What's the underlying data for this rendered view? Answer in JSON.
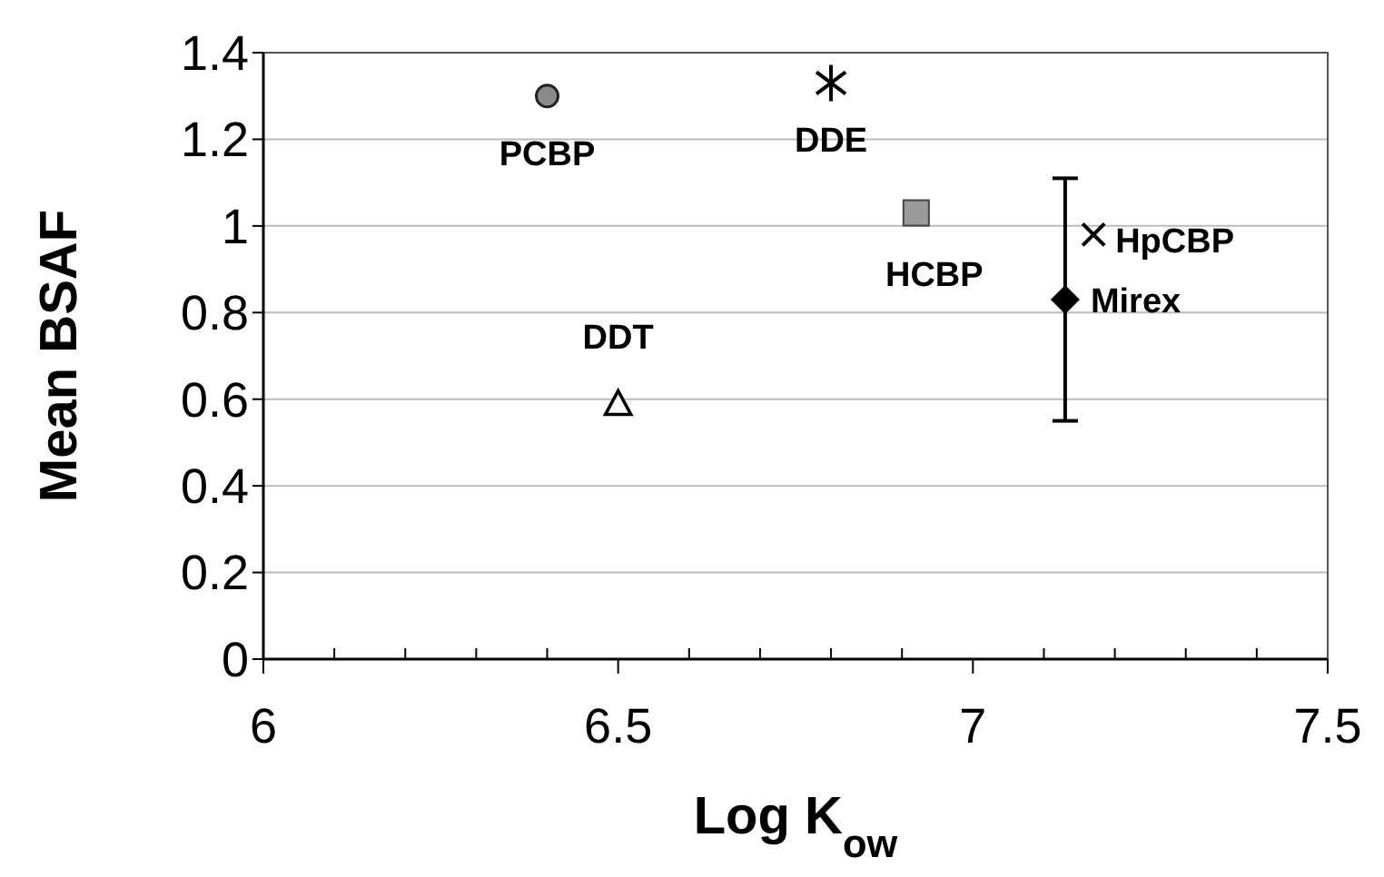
{
  "chart_data": {
    "type": "scatter",
    "xlabel": "Log K$_{ow}$",
    "ylabel": "Mean BSAF",
    "xlim": [
      6,
      7.5
    ],
    "ylim": [
      0,
      1.4
    ],
    "xticks": [
      6,
      {
        "value": 6.1,
        "label": null
      },
      {
        "value": 6.2,
        "label": null
      },
      {
        "value": 6.3,
        "label": null
      },
      {
        "value": 6.4,
        "label": null
      },
      6.5,
      {
        "value": 6.6,
        "label": null
      },
      {
        "value": 6.7,
        "label": null
      },
      {
        "value": 6.8,
        "label": null
      },
      {
        "value": 6.9,
        "label": null
      },
      7,
      {
        "value": 7.1,
        "label": null
      },
      {
        "value": 7.2,
        "label": null
      },
      {
        "value": 7.3,
        "label": null
      },
      {
        "value": 7.4,
        "label": null
      },
      7.5
    ],
    "yticks": [
      0,
      0.2,
      0.4,
      0.6,
      0.8,
      1,
      1.2,
      1.4
    ],
    "grid": "y",
    "series": [
      {
        "name": "PCBP",
        "color": "#8a8a8a",
        "marker": "circle",
        "x": [
          6.4
        ],
        "values": [
          1.3
        ]
      },
      {
        "name": "DDE",
        "color": "#000000",
        "x": [
          6.8
        ],
        "values": [
          1.33
        ]
      },
      {
        "name": "HCBP",
        "color": "#9a9a9a",
        "marker": "square",
        "x": [
          6.92
        ],
        "values": [
          1.03
        ]
      },
      {
        "name": "HpCBP",
        "color": "#000000",
        "marker": "cross",
        "x": [
          7.17
        ],
        "values": [
          0.98
        ]
      },
      {
        "name": "Mirex",
        "color": "#000000",
        "marker": "diamond",
        "x": [
          7.13
        ],
        "values": [
          0.83
        ],
        "errors": [
          [
            0.55,
            1.11
          ]
        ]
      },
      {
        "name": "DDT",
        "color": "#000000",
        "marker": "triangle",
        "x": [
          6.5
        ],
        "values": [
          0.59
        ]
      }
    ]
  }
}
